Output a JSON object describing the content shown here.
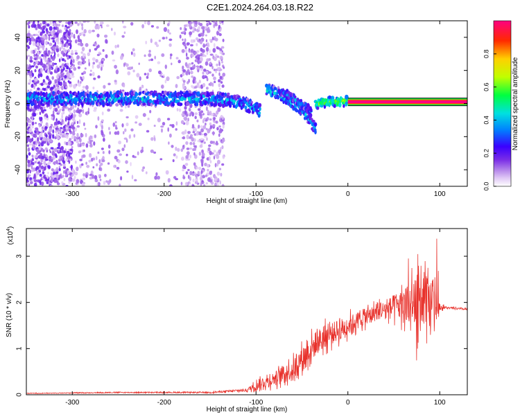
{
  "title": "C2E1.2024.264.03.18.R22",
  "colors": {
    "snr_line": "#e8322c",
    "colormap": [
      "#ffffff",
      "#e0c8f5",
      "#b383ea",
      "#7a2ee6",
      "#3a00ff",
      "#0080ff",
      "#00e0e0",
      "#00ff40",
      "#c0ff00",
      "#ffd000",
      "#ff2a00",
      "#ff0080"
    ]
  },
  "chart_data": [
    {
      "type": "heatmap",
      "title": "C2E1.2024.264.03.18.R22",
      "xlabel": "Height of straight line (km)",
      "ylabel": "Frequency (Hz)",
      "xlim": [
        -350,
        130
      ],
      "ylim": [
        -50,
        50
      ],
      "x_ticks": [
        "-300",
        "-200",
        "-100",
        "0",
        "100"
      ],
      "x_tick_values": [
        -300,
        -200,
        -100,
        0,
        100
      ],
      "y_ticks": [
        "40",
        "20",
        "0",
        "-20",
        "-40"
      ],
      "y_tick_values": [
        40,
        20,
        0,
        -20,
        -40
      ],
      "colorbar": {
        "label": "Normalized spectral amplitude",
        "ticks": [
          "0.0",
          "0.2",
          "0.4",
          "0.6",
          "0.8"
        ],
        "tick_values": [
          0.0,
          0.2,
          0.4,
          0.6,
          0.8
        ],
        "range": [
          0,
          1
        ]
      },
      "noise_bands": [
        {
          "x": [
            -350,
            -300
          ],
          "density": 0.9
        },
        {
          "x": [
            -300,
            -265
          ],
          "density": 0.35
        },
        {
          "x": [
            -265,
            -180
          ],
          "density": 0.12
        },
        {
          "x": [
            -180,
            -135
          ],
          "density": 0.55
        }
      ],
      "traces": [
        {
          "points": [
            [
              -350,
              3
            ],
            [
              -300,
              3
            ],
            [
              -250,
              3
            ],
            [
              -200,
              3
            ],
            [
              -150,
              3
            ],
            [
              -130,
              2
            ],
            [
              -115,
              0
            ],
            [
              -100,
              -3
            ],
            [
              -95,
              -5
            ]
          ],
          "amplitude": 0.35,
          "width": 3.5
        },
        {
          "points": [
            [
              -88,
              8
            ],
            [
              -75,
              6
            ],
            [
              -65,
              2
            ],
            [
              -55,
              -2
            ],
            [
              -45,
              -7
            ],
            [
              -38,
              -13
            ],
            [
              -35,
              -16
            ]
          ],
          "amplitude": 0.35,
          "width": 3
        },
        {
          "points": [
            [
              -72,
              7
            ],
            [
              -60,
              4
            ],
            [
              -52,
              0
            ],
            [
              -45,
              -2
            ],
            [
              -40,
              -5
            ]
          ],
          "amplitude": 0.3,
          "width": 2
        },
        {
          "points": [
            [
              -35,
              0
            ],
            [
              -20,
              1
            ],
            [
              -5,
              1
            ],
            [
              0,
              2
            ]
          ],
          "amplitude": 0.6,
          "width": 2.5
        },
        {
          "points": [
            [
              0,
              1
            ],
            [
              40,
              1
            ],
            [
              80,
              1
            ],
            [
              130,
              1
            ]
          ],
          "amplitude": 1.0,
          "width": 2.5
        }
      ]
    },
    {
      "type": "line",
      "xlabel": "Height of straight line (km)",
      "ylabel": "SNR (10 * v/v)",
      "y_multiplier": "(x10",
      "y_multiplier_exp": "4",
      "xlim": [
        -350,
        130
      ],
      "ylim": [
        0,
        3.6
      ],
      "x_ticks": [
        "-300",
        "-200",
        "-100",
        "0",
        "100"
      ],
      "x_tick_values": [
        -300,
        -200,
        -100,
        0,
        100
      ],
      "y_ticks": [
        "0",
        "1",
        "2",
        "3"
      ],
      "y_tick_values": [
        0,
        1,
        2,
        3
      ],
      "series": [
        {
          "envelope": {
            "x": [
              -350,
              -250,
              -150,
              -110,
              -100,
              -80,
              -60,
              -50,
              -40,
              -30,
              -20,
              -10,
              0,
              20,
              40,
              60,
              70,
              80,
              90,
              100,
              110,
              130
            ],
            "y": [
              0.03,
              0.05,
              0.05,
              0.1,
              0.2,
              0.35,
              0.55,
              0.8,
              1.0,
              1.2,
              1.3,
              1.4,
              1.5,
              1.7,
              1.85,
              1.95,
              2.0,
              2.05,
              1.95,
              1.9,
              1.88,
              1.85
            ]
          },
          "noise": {
            "x": [
              -350,
              -150,
              -110,
              -100,
              -80,
              -60,
              -40,
              -20,
              0,
              20,
              40,
              60,
              70,
              80,
              90,
              95,
              100,
              110,
              130
            ],
            "y": [
              0.01,
              0.02,
              0.05,
              0.15,
              0.25,
              0.35,
              0.45,
              0.4,
              0.35,
              0.3,
              0.3,
              0.6,
              0.8,
              1.2,
              0.8,
              0.6,
              0.1,
              0.03,
              0.03
            ]
          },
          "max": 3.6
        }
      ]
    }
  ]
}
